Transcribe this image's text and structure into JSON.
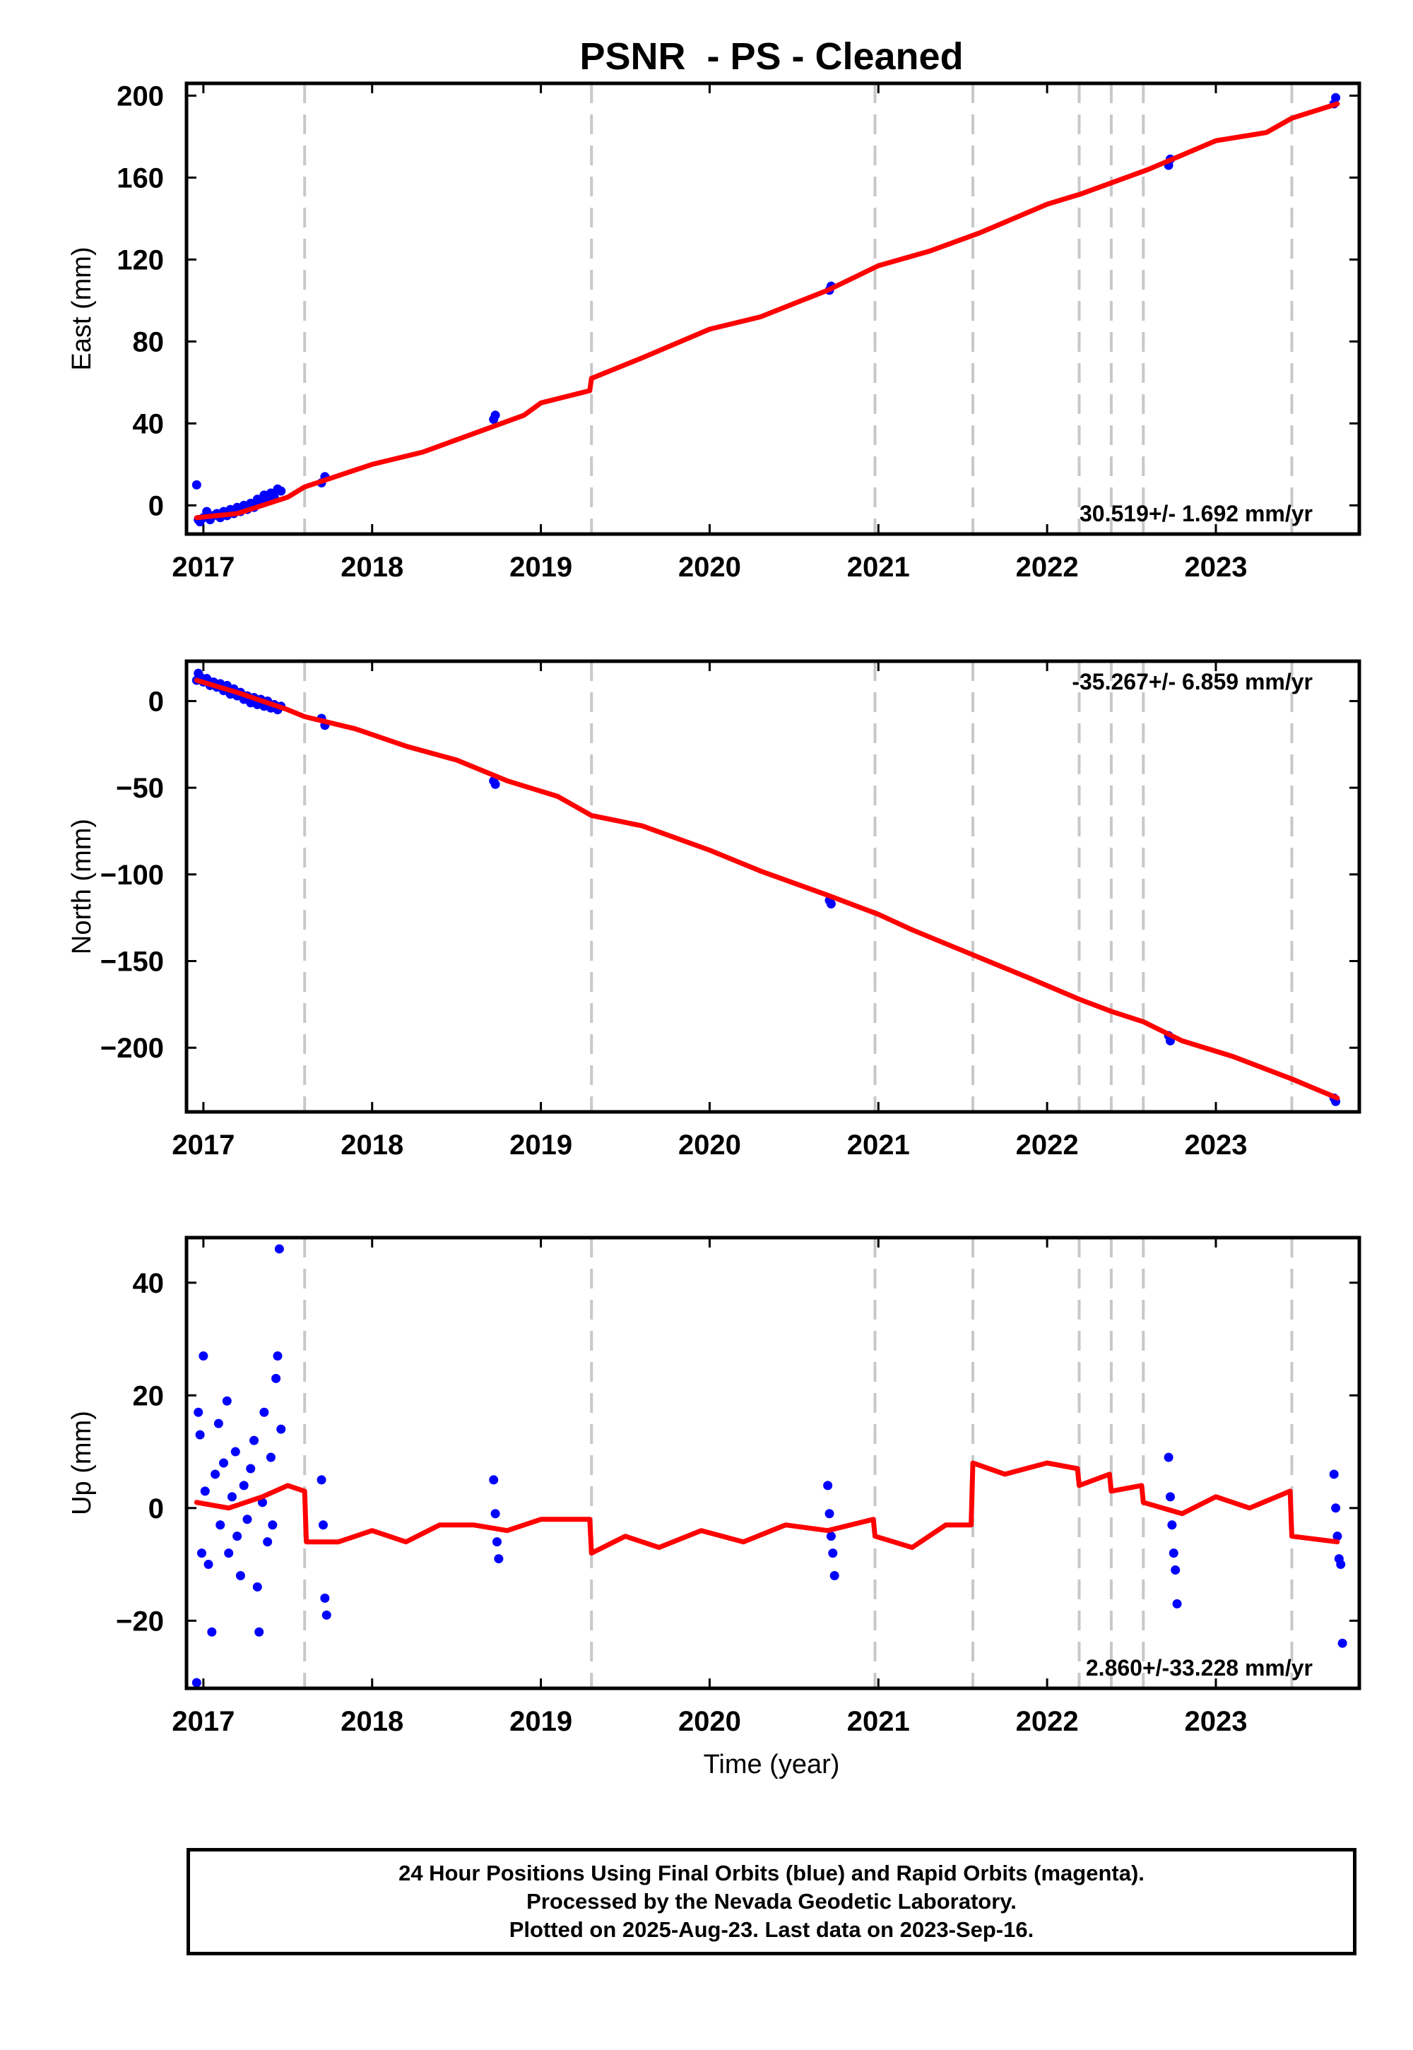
{
  "colors": {
    "data": "#0000ff",
    "model": "#ff0000",
    "gridline": "#c8c8c8",
    "frame": "#000000"
  },
  "chart_data": {
    "type": "scatter",
    "title": "PSNR  - PS - Cleaned",
    "xlabel": "Time (year)",
    "x_range": [
      2016.9,
      2023.85
    ],
    "x_ticks": [
      2017,
      2018,
      2019,
      2020,
      2021,
      2022,
      2023
    ],
    "x_tick_labels": [
      "2017",
      "2018",
      "2019",
      "2020",
      "2021",
      "2022",
      "2023"
    ],
    "dashed_vertical_lines": [
      2017.6,
      2019.3,
      2020.98,
      2021.56,
      2022.19,
      2022.38,
      2022.57,
      2023.45
    ],
    "panels": [
      {
        "name": "East",
        "ylabel": "East (mm)",
        "ylim": [
          -14,
          206
        ],
        "y_ticks": [
          0,
          40,
          80,
          120,
          160,
          200
        ],
        "y_tick_labels": [
          "0",
          "40",
          "80",
          "120",
          "160",
          "200"
        ],
        "rate_text": "30.519+/- 1.692 mm/yr",
        "rate_position": "bottom-right",
        "series": [
          {
            "type": "scatter",
            "points": [
              [
                2016.96,
                10
              ],
              [
                2016.97,
                -7
              ],
              [
                2016.98,
                -8
              ],
              [
                2017.0,
                -6
              ],
              [
                2017.02,
                -3
              ],
              [
                2017.04,
                -7
              ],
              [
                2017.06,
                -5
              ],
              [
                2017.08,
                -4
              ],
              [
                2017.1,
                -6
              ],
              [
                2017.12,
                -3
              ],
              [
                2017.14,
                -5
              ],
              [
                2017.16,
                -2
              ],
              [
                2017.18,
                -4
              ],
              [
                2017.2,
                -1
              ],
              [
                2017.22,
                -3
              ],
              [
                2017.24,
                0
              ],
              [
                2017.26,
                -2
              ],
              [
                2017.28,
                1
              ],
              [
                2017.3,
                -1
              ],
              [
                2017.32,
                3
              ],
              [
                2017.34,
                1
              ],
              [
                2017.36,
                5
              ],
              [
                2017.38,
                2
              ],
              [
                2017.4,
                6
              ],
              [
                2017.42,
                4
              ],
              [
                2017.44,
                8
              ],
              [
                2017.46,
                7
              ],
              [
                2017.7,
                11
              ],
              [
                2017.72,
                14
              ],
              [
                2018.72,
                42
              ],
              [
                2018.73,
                44
              ],
              [
                2020.71,
                105
              ],
              [
                2020.72,
                107
              ],
              [
                2022.72,
                166
              ],
              [
                2022.73,
                169
              ],
              [
                2023.7,
                196
              ],
              [
                2023.71,
                199
              ]
            ]
          },
          {
            "type": "line",
            "points": [
              [
                2016.96,
                -6
              ],
              [
                2017.2,
                -4
              ],
              [
                2017.5,
                4
              ],
              [
                2017.6,
                9
              ],
              [
                2018.0,
                20
              ],
              [
                2018.3,
                26
              ],
              [
                2018.6,
                35
              ],
              [
                2018.9,
                44
              ],
              [
                2019.0,
                50
              ],
              [
                2019.29,
                56
              ],
              [
                2019.3,
                62
              ],
              [
                2019.6,
                72
              ],
              [
                2020.0,
                86
              ],
              [
                2020.3,
                92
              ],
              [
                2020.7,
                105
              ],
              [
                2021.0,
                117
              ],
              [
                2021.3,
                124
              ],
              [
                2021.6,
                133
              ],
              [
                2022.0,
                147
              ],
              [
                2022.2,
                152
              ],
              [
                2022.6,
                164
              ],
              [
                2023.0,
                178
              ],
              [
                2023.3,
                182
              ],
              [
                2023.45,
                189
              ],
              [
                2023.72,
                196
              ]
            ]
          }
        ]
      },
      {
        "name": "North",
        "ylabel": "North (mm)",
        "ylim": [
          -237,
          23
        ],
        "y_ticks": [
          0,
          -50,
          -100,
          -150,
          -200
        ],
        "y_tick_labels": [
          "0",
          "−50",
          "−100",
          "−150",
          "−200"
        ],
        "rate_text": "-35.267+/- 6.859 mm/yr",
        "rate_position": "top-right",
        "series": [
          {
            "type": "scatter",
            "points": [
              [
                2016.96,
                12
              ],
              [
                2016.97,
                16
              ],
              [
                2016.98,
                14
              ],
              [
                2017.0,
                11
              ],
              [
                2017.02,
                13
              ],
              [
                2017.04,
                9
              ],
              [
                2017.06,
                11
              ],
              [
                2017.08,
                8
              ],
              [
                2017.1,
                10
              ],
              [
                2017.12,
                6
              ],
              [
                2017.14,
                9
              ],
              [
                2017.16,
                4
              ],
              [
                2017.18,
                7
              ],
              [
                2017.2,
                3
              ],
              [
                2017.22,
                5
              ],
              [
                2017.24,
                1
              ],
              [
                2017.26,
                3
              ],
              [
                2017.28,
                -1
              ],
              [
                2017.3,
                2
              ],
              [
                2017.32,
                -2
              ],
              [
                2017.34,
                1
              ],
              [
                2017.36,
                -3
              ],
              [
                2017.38,
                0
              ],
              [
                2017.4,
                -4
              ],
              [
                2017.42,
                -2
              ],
              [
                2017.44,
                -5
              ],
              [
                2017.46,
                -3
              ],
              [
                2017.7,
                -10
              ],
              [
                2017.72,
                -14
              ],
              [
                2018.72,
                -46
              ],
              [
                2018.73,
                -48
              ],
              [
                2020.71,
                -115
              ],
              [
                2020.72,
                -117
              ],
              [
                2022.72,
                -193
              ],
              [
                2022.73,
                -196
              ],
              [
                2023.7,
                -229
              ],
              [
                2023.71,
                -231
              ]
            ]
          },
          {
            "type": "line",
            "points": [
              [
                2016.96,
                12
              ],
              [
                2017.2,
                5
              ],
              [
                2017.5,
                -5
              ],
              [
                2017.6,
                -9
              ],
              [
                2017.9,
                -16
              ],
              [
                2018.2,
                -26
              ],
              [
                2018.5,
                -34
              ],
              [
                2018.8,
                -46
              ],
              [
                2019.1,
                -55
              ],
              [
                2019.3,
                -66
              ],
              [
                2019.6,
                -72
              ],
              [
                2020.0,
                -86
              ],
              [
                2020.3,
                -98
              ],
              [
                2020.7,
                -112
              ],
              [
                2021.0,
                -123
              ],
              [
                2021.2,
                -132
              ],
              [
                2021.55,
                -146
              ],
              [
                2021.9,
                -160
              ],
              [
                2022.19,
                -172
              ],
              [
                2022.38,
                -179
              ],
              [
                2022.57,
                -185
              ],
              [
                2022.8,
                -196
              ],
              [
                2023.1,
                -205
              ],
              [
                2023.45,
                -218
              ],
              [
                2023.72,
                -229
              ]
            ]
          }
        ]
      },
      {
        "name": "Up",
        "ylabel": "Up (mm)",
        "ylim": [
          -32,
          48
        ],
        "y_ticks": [
          40,
          20,
          0,
          -20
        ],
        "y_tick_labels": [
          "40",
          "20",
          "0",
          "−20"
        ],
        "rate_text": "2.860+/-33.228 mm/yr",
        "rate_position": "bottom-right",
        "series": [
          {
            "type": "scatter",
            "points": [
              [
                2016.96,
                -31
              ],
              [
                2016.97,
                17
              ],
              [
                2016.98,
                13
              ],
              [
                2016.99,
                -8
              ],
              [
                2017.0,
                27
              ],
              [
                2017.01,
                3
              ],
              [
                2017.03,
                -10
              ],
              [
                2017.05,
                -22
              ],
              [
                2017.07,
                6
              ],
              [
                2017.09,
                15
              ],
              [
                2017.1,
                -3
              ],
              [
                2017.12,
                8
              ],
              [
                2017.14,
                19
              ],
              [
                2017.15,
                -8
              ],
              [
                2017.17,
                2
              ],
              [
                2017.19,
                10
              ],
              [
                2017.2,
                -5
              ],
              [
                2017.22,
                -12
              ],
              [
                2017.24,
                4
              ],
              [
                2017.26,
                -2
              ],
              [
                2017.28,
                7
              ],
              [
                2017.3,
                12
              ],
              [
                2017.32,
                -14
              ],
              [
                2017.33,
                -22
              ],
              [
                2017.35,
                1
              ],
              [
                2017.36,
                17
              ],
              [
                2017.38,
                -6
              ],
              [
                2017.4,
                9
              ],
              [
                2017.41,
                -3
              ],
              [
                2017.43,
                23
              ],
              [
                2017.44,
                27
              ],
              [
                2017.45,
                46
              ],
              [
                2017.46,
                14
              ],
              [
                2017.7,
                5
              ],
              [
                2017.71,
                -3
              ],
              [
                2017.72,
                -16
              ],
              [
                2017.73,
                -19
              ],
              [
                2018.72,
                5
              ],
              [
                2018.73,
                -1
              ],
              [
                2018.74,
                -6
              ],
              [
                2018.75,
                -9
              ],
              [
                2020.7,
                4
              ],
              [
                2020.71,
                -1
              ],
              [
                2020.72,
                -5
              ],
              [
                2020.73,
                -8
              ],
              [
                2020.74,
                -12
              ],
              [
                2022.72,
                9
              ],
              [
                2022.73,
                2
              ],
              [
                2022.74,
                -3
              ],
              [
                2022.75,
                -8
              ],
              [
                2022.76,
                -11
              ],
              [
                2022.77,
                -17
              ],
              [
                2023.7,
                6
              ],
              [
                2023.71,
                0
              ],
              [
                2023.72,
                -5
              ],
              [
                2023.73,
                -9
              ],
              [
                2023.74,
                -10
              ],
              [
                2023.75,
                -24
              ]
            ]
          },
          {
            "type": "line",
            "points": [
              [
                2016.96,
                1
              ],
              [
                2017.15,
                0
              ],
              [
                2017.35,
                2
              ],
              [
                2017.5,
                4
              ],
              [
                2017.6,
                3
              ],
              [
                2017.61,
                -6
              ],
              [
                2017.8,
                -6
              ],
              [
                2018.0,
                -4
              ],
              [
                2018.2,
                -6
              ],
              [
                2018.4,
                -3
              ],
              [
                2018.6,
                -3
              ],
              [
                2018.8,
                -4
              ],
              [
                2019.0,
                -2
              ],
              [
                2019.29,
                -2
              ],
              [
                2019.3,
                -8
              ],
              [
                2019.5,
                -5
              ],
              [
                2019.7,
                -7
              ],
              [
                2019.95,
                -4
              ],
              [
                2020.2,
                -6
              ],
              [
                2020.45,
                -3
              ],
              [
                2020.7,
                -4
              ],
              [
                2020.97,
                -2
              ],
              [
                2020.98,
                -5
              ],
              [
                2021.2,
                -7
              ],
              [
                2021.4,
                -3
              ],
              [
                2021.55,
                -3
              ],
              [
                2021.56,
                8
              ],
              [
                2021.75,
                6
              ],
              [
                2022.0,
                8
              ],
              [
                2022.18,
                7
              ],
              [
                2022.19,
                4
              ],
              [
                2022.37,
                6
              ],
              [
                2022.38,
                3
              ],
              [
                2022.56,
                4
              ],
              [
                2022.57,
                1
              ],
              [
                2022.8,
                -1
              ],
              [
                2023.0,
                2
              ],
              [
                2023.2,
                0
              ],
              [
                2023.44,
                3
              ],
              [
                2023.45,
                -5
              ],
              [
                2023.72,
                -6
              ]
            ]
          }
        ]
      }
    ]
  },
  "footer": {
    "lines": [
      "24 Hour Positions Using Final Orbits (blue) and Rapid Orbits (magenta).",
      "Processed by the Nevada Geodetic Laboratory.",
      "Plotted on 2025-Aug-23. Last data on 2023-Sep-16."
    ]
  }
}
